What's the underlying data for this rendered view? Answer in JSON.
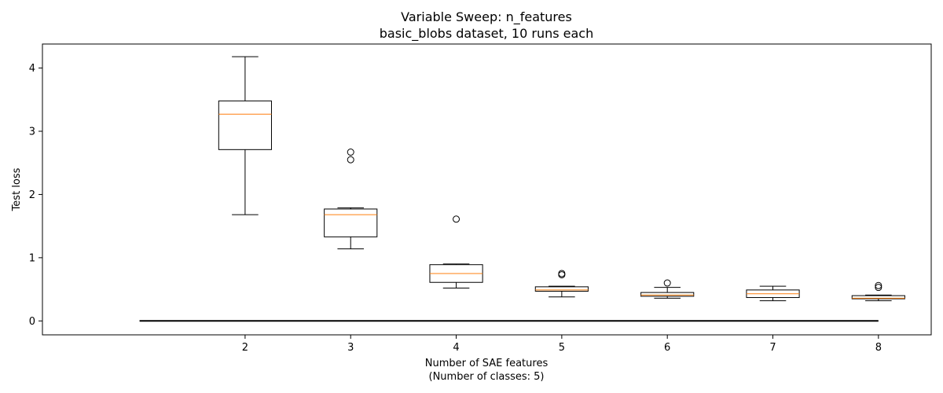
{
  "chart_data": {
    "type": "box",
    "title": "Variable Sweep: n_features",
    "subtitle": "basic_blobs dataset, 10 runs each",
    "xlabel": "Number of SAE features",
    "xlabel_sub": "(Number of classes: 5)",
    "ylabel": "Test loss",
    "xlim": [
      0.08,
      8.5
    ],
    "ylim": [
      -0.22,
      4.38
    ],
    "yticks": [
      0,
      1,
      2,
      3,
      4
    ],
    "xticks": [
      2,
      3,
      4,
      5,
      6,
      7,
      8
    ],
    "baseline": {
      "y": 0,
      "x_start": 1,
      "x_end": 8
    },
    "boxes": [
      {
        "x": 2,
        "whisker_low": 1.68,
        "q1": 2.71,
        "median": 3.27,
        "q3": 3.48,
        "whisker_high": 4.18,
        "outliers": []
      },
      {
        "x": 3,
        "whisker_low": 1.14,
        "q1": 1.33,
        "median": 1.68,
        "q3": 1.77,
        "whisker_high": 1.79,
        "outliers": [
          2.55,
          2.67
        ]
      },
      {
        "x": 4,
        "whisker_low": 0.52,
        "q1": 0.61,
        "median": 0.75,
        "q3": 0.89,
        "whisker_high": 0.9,
        "outliers": [
          1.61
        ]
      },
      {
        "x": 5,
        "whisker_low": 0.38,
        "q1": 0.47,
        "median": 0.49,
        "q3": 0.54,
        "whisker_high": 0.55,
        "outliers": [
          0.73,
          0.75
        ]
      },
      {
        "x": 6,
        "whisker_low": 0.36,
        "q1": 0.39,
        "median": 0.41,
        "q3": 0.45,
        "whisker_high": 0.53,
        "outliers": [
          0.6
        ]
      },
      {
        "x": 7,
        "whisker_low": 0.32,
        "q1": 0.37,
        "median": 0.43,
        "q3": 0.49,
        "whisker_high": 0.55,
        "outliers": []
      },
      {
        "x": 8,
        "whisker_low": 0.32,
        "q1": 0.35,
        "median": 0.36,
        "q3": 0.4,
        "whisker_high": 0.41,
        "outliers": [
          0.53,
          0.56
        ]
      }
    ],
    "colors": {
      "box": "#000000",
      "median": "#ff7f0e",
      "baseline": "#000000"
    },
    "grid": false,
    "legend": "none"
  }
}
